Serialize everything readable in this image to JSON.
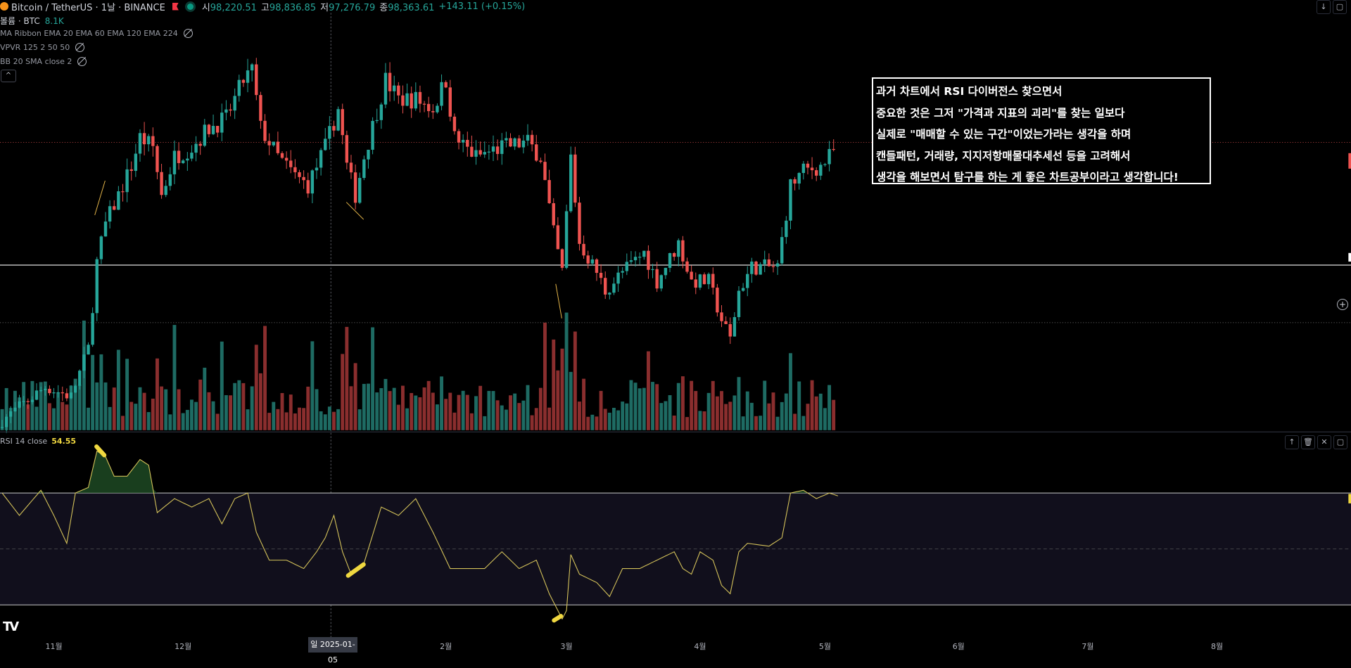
{
  "header": {
    "symbol": "Bitcoin / TetherUS · 1날 · BINANCE",
    "open_label": "시",
    "open": "98,220.51",
    "high_label": "고",
    "high": "98,836.85",
    "low_label": "저",
    "low": "97,276.79",
    "close_label": "종",
    "close": "98,363.61",
    "change": "+143.11 (+0.15%)"
  },
  "indicators": [
    {
      "label": "볼륨 · BTC",
      "value": "8.1K"
    },
    {
      "label": "MA Ribbon EMA 20 EMA 60 EMA 120 EMA 224"
    },
    {
      "label": "VPVR 125 2 50 50"
    },
    {
      "label": "BB 20 SMA close 2"
    }
  ],
  "collapse_icon": "^",
  "note_lines": [
    "과거 차트에서 RSI 다이버전스 찾으면서",
    "중요한 것은 그저 \"가격과 지표의 괴리\"를 찾는 일보다",
    "실제로 \"매매할 수 있는 구간\"이었는가라는 생각을 하며",
    "캔들패턴, 거래량, 지지저항매물대추세선 등을 고려해서",
    "생각을 해보면서 탐구를 하는 게 좋은 차트공부이라고 생각합니다!"
  ],
  "rsi": {
    "label": "RSI 14 close",
    "value": "54.55",
    "upper": 70,
    "mid": 50,
    "lower": 30
  },
  "x_axis": {
    "labels": [
      "11월",
      "12월",
      "2월",
      "3월",
      "4월",
      "5월",
      "6월",
      "7월",
      "8월"
    ],
    "label_days": [
      12,
      42,
      103,
      131,
      162,
      191,
      222,
      252,
      282
    ],
    "crosshair": "일 2025-01-05",
    "crosshair_day": 77
  },
  "logo": "TV",
  "colors": {
    "up": "#26a69a",
    "down": "#ef5350",
    "vol_up": "#1e6b63",
    "vol_down": "#8a2e2e",
    "rsi": "#d4c25a",
    "band": "#110f1c",
    "highlight": "#f0d840",
    "arrow": "#e8b84a"
  },
  "price_levels": [
    97500,
    84700,
    78700
  ],
  "chart_data": {
    "type": "candlestick",
    "close_waypoints": [
      [
        0,
        68500
      ],
      [
        10,
        72000
      ],
      [
        16,
        71000
      ],
      [
        20,
        76000
      ],
      [
        22,
        85000
      ],
      [
        24,
        89000
      ],
      [
        26,
        91000
      ],
      [
        30,
        95000
      ],
      [
        32,
        98000
      ],
      [
        35,
        97000
      ],
      [
        37,
        92000
      ],
      [
        40,
        96000
      ],
      [
        44,
        97000
      ],
      [
        48,
        99000
      ],
      [
        52,
        100000
      ],
      [
        56,
        104000
      ],
      [
        58,
        105000
      ],
      [
        60,
        99000
      ],
      [
        64,
        96000
      ],
      [
        68,
        94000
      ],
      [
        71,
        93000
      ],
      [
        75,
        97000
      ],
      [
        78,
        101000
      ],
      [
        80,
        95000
      ],
      [
        82,
        92000
      ],
      [
        84,
        96000
      ],
      [
        89,
        104000
      ],
      [
        92,
        102000
      ],
      [
        96,
        102000
      ],
      [
        100,
        101000
      ],
      [
        103,
        104000
      ],
      [
        105,
        98000
      ],
      [
        110,
        96000
      ],
      [
        116,
        97000
      ],
      [
        122,
        97500
      ],
      [
        125,
        96000
      ],
      [
        128,
        88000
      ],
      [
        130,
        84000
      ],
      [
        132,
        96000
      ],
      [
        134,
        87000
      ],
      [
        138,
        84000
      ],
      [
        140,
        82000
      ],
      [
        144,
        84000
      ],
      [
        149,
        86000
      ],
      [
        152,
        83000
      ],
      [
        157,
        87000
      ],
      [
        160,
        83000
      ],
      [
        164,
        83000
      ],
      [
        167,
        79000
      ],
      [
        169,
        77000
      ],
      [
        171,
        82000
      ],
      [
        174,
        84500
      ],
      [
        180,
        84500
      ],
      [
        183,
        93000
      ],
      [
        186,
        94500
      ],
      [
        190,
        95000
      ],
      [
        193,
        96500
      ]
    ],
    "rsi_waypoints": [
      [
        0,
        70
      ],
      [
        4,
        62
      ],
      [
        9,
        71
      ],
      [
        12,
        62
      ],
      [
        15,
        52
      ],
      [
        17,
        70
      ],
      [
        20,
        72
      ],
      [
        22,
        85
      ],
      [
        24,
        83
      ],
      [
        26,
        76
      ],
      [
        29,
        76
      ],
      [
        32,
        82
      ],
      [
        34,
        80
      ],
      [
        36,
        63
      ],
      [
        40,
        68
      ],
      [
        44,
        65
      ],
      [
        48,
        68
      ],
      [
        51,
        59
      ],
      [
        54,
        68
      ],
      [
        57,
        70
      ],
      [
        59,
        56
      ],
      [
        62,
        46
      ],
      [
        66,
        46
      ],
      [
        70,
        43
      ],
      [
        73,
        49
      ],
      [
        75,
        54
      ],
      [
        77,
        62
      ],
      [
        79,
        49
      ],
      [
        81,
        41
      ],
      [
        84,
        45
      ],
      [
        88,
        65
      ],
      [
        92,
        62
      ],
      [
        96,
        68
      ],
      [
        100,
        56
      ],
      [
        104,
        43
      ],
      [
        108,
        43
      ],
      [
        112,
        43
      ],
      [
        116,
        49
      ],
      [
        120,
        43
      ],
      [
        124,
        46
      ],
      [
        127,
        34
      ],
      [
        130,
        25
      ],
      [
        131,
        28
      ],
      [
        132,
        48
      ],
      [
        134,
        41
      ],
      [
        138,
        38
      ],
      [
        141,
        33
      ],
      [
        144,
        43
      ],
      [
        148,
        43
      ],
      [
        152,
        46
      ],
      [
        156,
        49
      ],
      [
        158,
        43
      ],
      [
        160,
        41
      ],
      [
        162,
        49
      ],
      [
        165,
        46
      ],
      [
        167,
        37
      ],
      [
        169,
        34
      ],
      [
        171,
        49
      ],
      [
        173,
        52
      ],
      [
        178,
        51
      ],
      [
        181,
        54
      ],
      [
        183,
        70
      ],
      [
        186,
        71
      ],
      [
        189,
        68
      ],
      [
        192,
        70
      ],
      [
        194,
        69
      ]
    ]
  }
}
